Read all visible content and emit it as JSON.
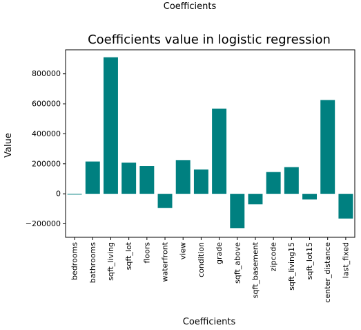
{
  "figure": {
    "suptitle": "Coefficients"
  },
  "chart_data": {
    "type": "bar",
    "title": "Coefficients value in logistic regression",
    "xlabel": "Coefficients",
    "ylabel": "Value",
    "categories": [
      "bedrooms",
      "bathrooms",
      "sqft_living",
      "sqft_lot",
      "floors",
      "waterfront",
      "view",
      "condition",
      "grade",
      "sqft_above",
      "sqft_basement",
      "zipcode",
      "sqft_living15",
      "sqft_lot15",
      "center_distance",
      "last_fixed"
    ],
    "values": [
      -5000,
      215000,
      910000,
      208000,
      185000,
      -95000,
      225000,
      162000,
      568000,
      -230000,
      -70000,
      145000,
      178000,
      -38000,
      625000,
      -165000
    ],
    "ylim": [
      -290000,
      960000
    ],
    "yticks": [
      -200000,
      0,
      200000,
      400000,
      600000,
      800000
    ],
    "ytick_labels": [
      "−200000",
      "0",
      "200000",
      "400000",
      "600000",
      "800000"
    ],
    "bar_color": "#008080",
    "grid": false,
    "legend": "none"
  }
}
